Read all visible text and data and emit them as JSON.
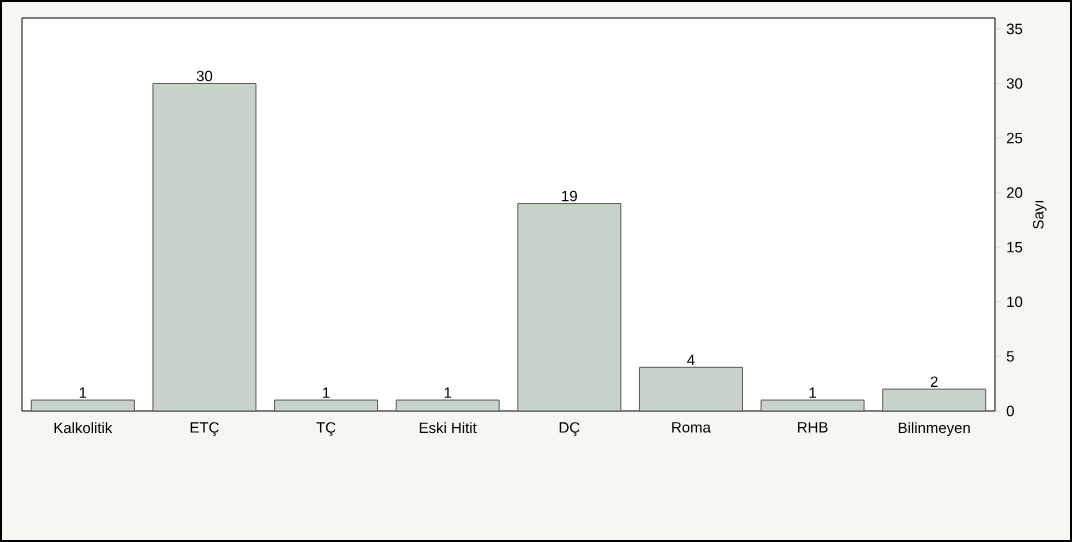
{
  "chart_data": {
    "type": "bar",
    "ylabel": "Sayı",
    "categories": [
      "Kalkolitik",
      "ETÇ",
      "TÇ",
      "Eski Hitit",
      "DÇ",
      "Roma",
      "RHB",
      "Bilinmeyen"
    ],
    "values": [
      1,
      30,
      1,
      1,
      19,
      4,
      1,
      2
    ],
    "color": "#c9d3c9",
    "ylim": [
      0,
      36
    ],
    "yticks": [
      0,
      5,
      10,
      15,
      20,
      25,
      30,
      35
    ],
    "data_labels": true
  }
}
